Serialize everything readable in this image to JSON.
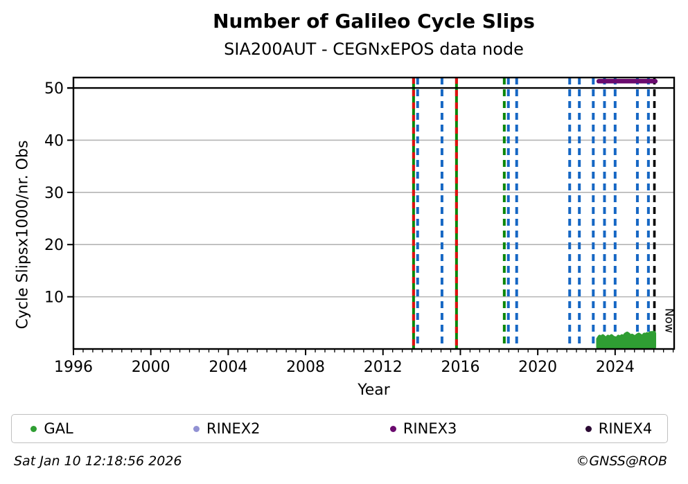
{
  "footer": {
    "timestamp": "Sat Jan 10 12:18:56 2026",
    "credit": "©GNSS@ROB"
  },
  "legend": {
    "items": [
      {
        "label": "GAL",
        "color": "#2f9e33"
      },
      {
        "label": "RINEX2",
        "color": "#9191d3"
      },
      {
        "label": "RINEX3",
        "color": "#6a0a6e"
      },
      {
        "label": "RINEX4",
        "color": "#2b0a33"
      }
    ]
  },
  "chart_data": {
    "type": "scatter",
    "title": "Number of Galileo Cycle Slips",
    "subtitle": "SIA200AUT - CEGNxEPOS data node",
    "xlabel": "Year",
    "ylabel": "Cycle Slipsx1000/nr. Obs",
    "xlim": [
      1996,
      2027.05
    ],
    "ylim": [
      0,
      52
    ],
    "xticks": [
      1996,
      2000,
      2004,
      2008,
      2012,
      2016,
      2020,
      2024
    ],
    "xminor_step": 0.5,
    "yticks": [
      10,
      20,
      30,
      40,
      50
    ],
    "grid": {
      "color": "#b4b4b4",
      "line50_color": "#000000",
      "legend_position": "bottom"
    },
    "now": {
      "x": 2026.03,
      "label": "Now",
      "color": "#000000"
    },
    "event_lines": [
      {
        "x": 2013.58,
        "color": "#0a870a",
        "dash": false,
        "overlay": {
          "color": "#e01010",
          "dash": true
        }
      },
      {
        "x": 2013.79,
        "color": "#1667c4",
        "dash": true
      },
      {
        "x": 2015.05,
        "color": "#1667c4",
        "dash": true
      },
      {
        "x": 2015.8,
        "color": "#0a870a",
        "dash": false,
        "overlay": {
          "color": "#e01010",
          "dash": true
        }
      },
      {
        "x": 2018.27,
        "color": "#0a870a",
        "dash": true
      },
      {
        "x": 2018.48,
        "color": "#1667c4",
        "dash": true
      },
      {
        "x": 2018.91,
        "color": "#1667c4",
        "dash": true
      },
      {
        "x": 2021.65,
        "color": "#1667c4",
        "dash": true
      },
      {
        "x": 2022.15,
        "color": "#1667c4",
        "dash": true
      },
      {
        "x": 2022.87,
        "color": "#1667c4",
        "dash": true
      },
      {
        "x": 2023.45,
        "color": "#1667c4",
        "dash": true
      },
      {
        "x": 2024.0,
        "color": "#1667c4",
        "dash": true
      },
      {
        "x": 2025.15,
        "color": "#1667c4",
        "dash": true
      },
      {
        "x": 2025.72,
        "color": "#1667c4",
        "dash": true
      }
    ],
    "series": [
      {
        "name": "GAL",
        "type": "scatter-band",
        "color": "#2f9e33",
        "baseline": 0.35,
        "points": [
          [
            2023.11,
            1.9
          ],
          [
            2023.2,
            2.4
          ],
          [
            2023.28,
            2.1
          ],
          [
            2023.36,
            2.5
          ],
          [
            2023.45,
            2.2
          ],
          [
            2023.54,
            2.0
          ],
          [
            2023.63,
            2.4
          ],
          [
            2023.72,
            2.2
          ],
          [
            2023.81,
            2.5
          ],
          [
            2023.9,
            2.2
          ],
          [
            2024.0,
            2.1
          ],
          [
            2024.08,
            2.0
          ],
          [
            2024.17,
            2.4
          ],
          [
            2024.26,
            2.2
          ],
          [
            2024.35,
            2.5
          ],
          [
            2024.44,
            2.3
          ],
          [
            2024.53,
            2.8
          ],
          [
            2024.62,
            3.0
          ],
          [
            2024.7,
            2.8
          ],
          [
            2024.78,
            2.4
          ],
          [
            2024.87,
            2.6
          ],
          [
            2024.96,
            2.4
          ],
          [
            2025.05,
            2.3
          ],
          [
            2025.13,
            2.6
          ],
          [
            2025.22,
            2.8
          ],
          [
            2025.3,
            2.6
          ],
          [
            2025.37,
            2.4
          ],
          [
            2025.44,
            2.5
          ],
          [
            2025.51,
            2.8
          ],
          [
            2025.58,
            2.7
          ],
          [
            2025.65,
            2.9
          ],
          [
            2025.72,
            2.8
          ],
          [
            2025.8,
            3.0
          ],
          [
            2025.87,
            3.1
          ],
          [
            2025.94,
            3.0
          ],
          [
            2026.0,
            3.2
          ],
          [
            2026.03,
            3.0
          ]
        ]
      },
      {
        "name": "RINEX3",
        "type": "line",
        "color": "#6a0a6e",
        "y": 51.3,
        "x_start": 2023.15,
        "x_end": 2026.08
      }
    ]
  }
}
